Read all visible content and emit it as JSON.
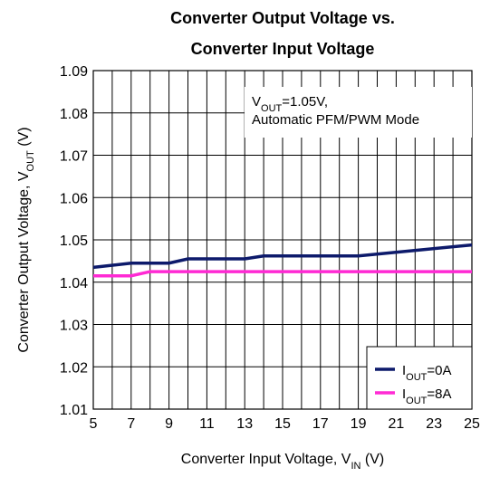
{
  "chart_data": {
    "type": "line",
    "title": [
      "Converter Output Voltage vs.",
      "Converter Input Voltage"
    ],
    "x_label": [
      "Converter Input Voltage, V",
      "IN",
      " (V)"
    ],
    "y_label": [
      "Converter Output Voltage, V",
      "OUT",
      " (V)"
    ],
    "annotation": [
      [
        "V",
        "OUT",
        "=1.05V,"
      ],
      [
        "Automatic PFM/PWM Mode"
      ]
    ],
    "xlim": [
      5,
      25
    ],
    "xticks": [
      5,
      7,
      9,
      11,
      13,
      15,
      17,
      19,
      21,
      23,
      25
    ],
    "xminorticks": [
      6,
      8,
      10,
      12,
      14,
      16,
      18,
      20,
      22,
      24
    ],
    "ylim": [
      1.01,
      1.09
    ],
    "yticks": [
      1.01,
      1.02,
      1.03,
      1.04,
      1.05,
      1.06,
      1.07,
      1.08,
      1.09
    ],
    "grid": true,
    "legend": "lower right",
    "series": [
      {
        "name": [
          "I",
          "OUT",
          "=0A"
        ],
        "color": "#0d1a6b",
        "x": [
          5,
          7,
          9,
          10,
          13,
          14,
          19,
          25
        ],
        "values": [
          1.0435,
          1.0445,
          1.0445,
          1.0455,
          1.0455,
          1.0462,
          1.0462,
          1.0488
        ]
      },
      {
        "name": [
          "I",
          "OUT",
          "=8A"
        ],
        "color": "#ff2ad4",
        "x": [
          5,
          7,
          8,
          25
        ],
        "values": [
          1.0415,
          1.0415,
          1.0425,
          1.0425
        ]
      }
    ]
  }
}
